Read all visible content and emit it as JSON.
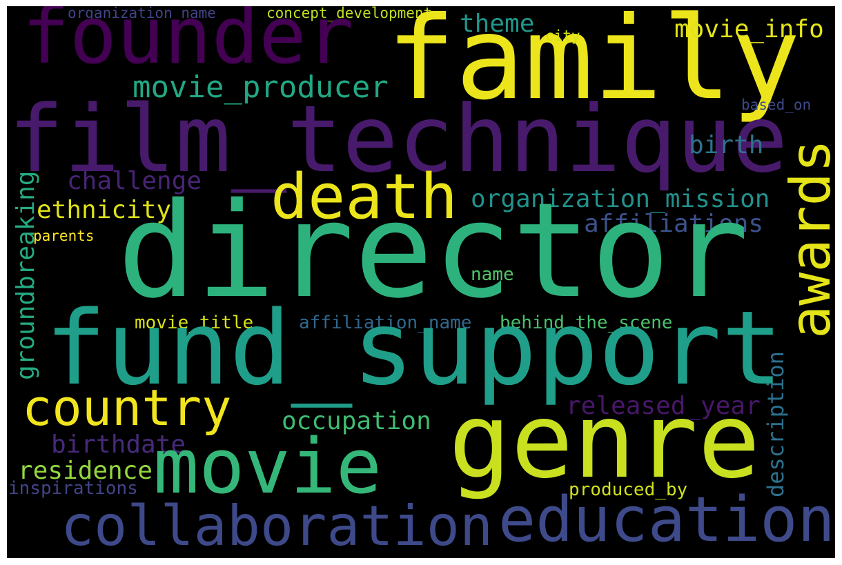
{
  "words": {
    "director": {
      "text": "director",
      "color": "#2db27d"
    },
    "fund_support": {
      "text": "fund_support",
      "color": "#1f9e89"
    },
    "film_technique": {
      "text": "film_technique",
      "color": "#481a6c"
    },
    "family": {
      "text": "family",
      "color": "#ece51b"
    },
    "genre": {
      "text": "genre",
      "color": "#c8e020"
    },
    "founder": {
      "text": "founder",
      "color": "#440154"
    },
    "movie": {
      "text": "movie",
      "color": "#35b779"
    },
    "education": {
      "text": "education",
      "color": "#3e4a89"
    },
    "collaboration": {
      "text": "collaboration",
      "color": "#3e4989"
    },
    "awards": {
      "text": "awards",
      "color": "#e5e419"
    },
    "death": {
      "text": "death",
      "color": "#ece51b"
    },
    "country": {
      "text": "country",
      "color": "#f1e51d"
    },
    "movie_producer": {
      "text": "movie_producer",
      "color": "#22a884"
    },
    "organization_mission": {
      "text": "organization_mission",
      "color": "#21918c"
    },
    "affiliations": {
      "text": "affiliations",
      "color": "#3b528b"
    },
    "ethnicity": {
      "text": "ethnicity",
      "color": "#dde318"
    },
    "challenge": {
      "text": "challenge",
      "color": "#482475"
    },
    "groundbreaking": {
      "text": "groundbreaking",
      "color": "#25ab82"
    },
    "theme": {
      "text": "theme",
      "color": "#1f968b"
    },
    "movie_info": {
      "text": "movie_info",
      "color": "#e2e418"
    },
    "birth": {
      "text": "birth",
      "color": "#2c728e"
    },
    "released_year": {
      "text": "released_year",
      "color": "#481769"
    },
    "occupation": {
      "text": "occupation",
      "color": "#3fbc73"
    },
    "birthdate": {
      "text": "birthdate",
      "color": "#472a7a"
    },
    "residence": {
      "text": "residence",
      "color": "#93d741"
    },
    "description": {
      "text": "description",
      "color": "#2c718e"
    },
    "movie_title": {
      "text": "movie_title",
      "color": "#d8e219"
    },
    "affiliation_name": {
      "text": "affiliation_name",
      "color": "#31688e"
    },
    "behind_the_scene": {
      "text": "behind_the_scene",
      "color": "#4ac16d"
    },
    "name": {
      "text": "name",
      "color": "#52c569"
    },
    "produced_by": {
      "text": "produced_by",
      "color": "#d0e11c"
    },
    "inspirations": {
      "text": "inspirations",
      "color": "#414487"
    },
    "organization_name": {
      "text": "organization_name",
      "color": "#414487"
    },
    "concept_development": {
      "text": "concept_development",
      "color": "#c2df23"
    },
    "city": {
      "text": "city",
      "color": "#d2e21b"
    },
    "based_on": {
      "text": "based_on",
      "color": "#3e4a89"
    },
    "parents": {
      "text": "parents",
      "color": "#fde725"
    }
  }
}
